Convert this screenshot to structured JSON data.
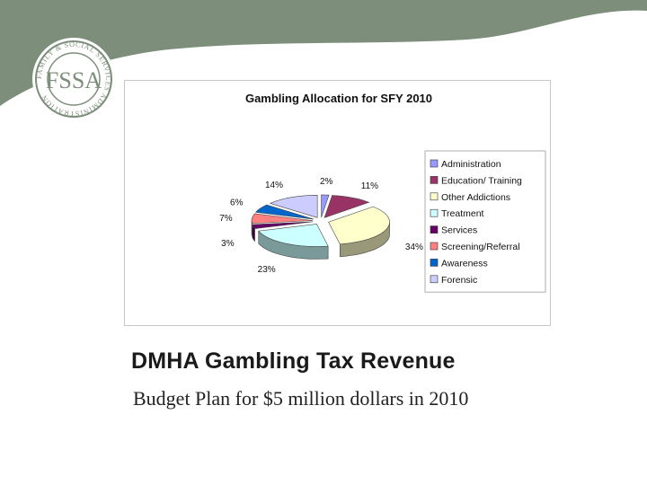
{
  "logo": {
    "letters": "FSSA",
    "ring_text": "FAMILY & SOCIAL SERVICES ADMINISTRATION"
  },
  "colors": {
    "banner": "#7d8f7b",
    "logo_ring": "#ffffff"
  },
  "slide": {
    "title": "DMHA Gambling Tax Revenue",
    "subtitle": "Budget Plan for $5 million dollars in 2010"
  },
  "chart_data": {
    "type": "pie",
    "title": "Gambling Allocation for SFY 2010",
    "style": "3d-exploded",
    "legend_position": "right",
    "categories": [
      "Administration",
      "Education/ Training",
      "Other Addictions",
      "Treatment",
      "Services",
      "Screening/Referral",
      "Awareness",
      "Forensic"
    ],
    "values": [
      2,
      11,
      34,
      23,
      3,
      7,
      6,
      14
    ],
    "labels": [
      "2%",
      "11%",
      "34%",
      "23%",
      "3%",
      "7%",
      "6%",
      "14%"
    ],
    "colors": [
      "#9999ff",
      "#993366",
      "#ffffcc",
      "#ccffff",
      "#660066",
      "#ff8080",
      "#0066cc",
      "#ccccff"
    ]
  }
}
